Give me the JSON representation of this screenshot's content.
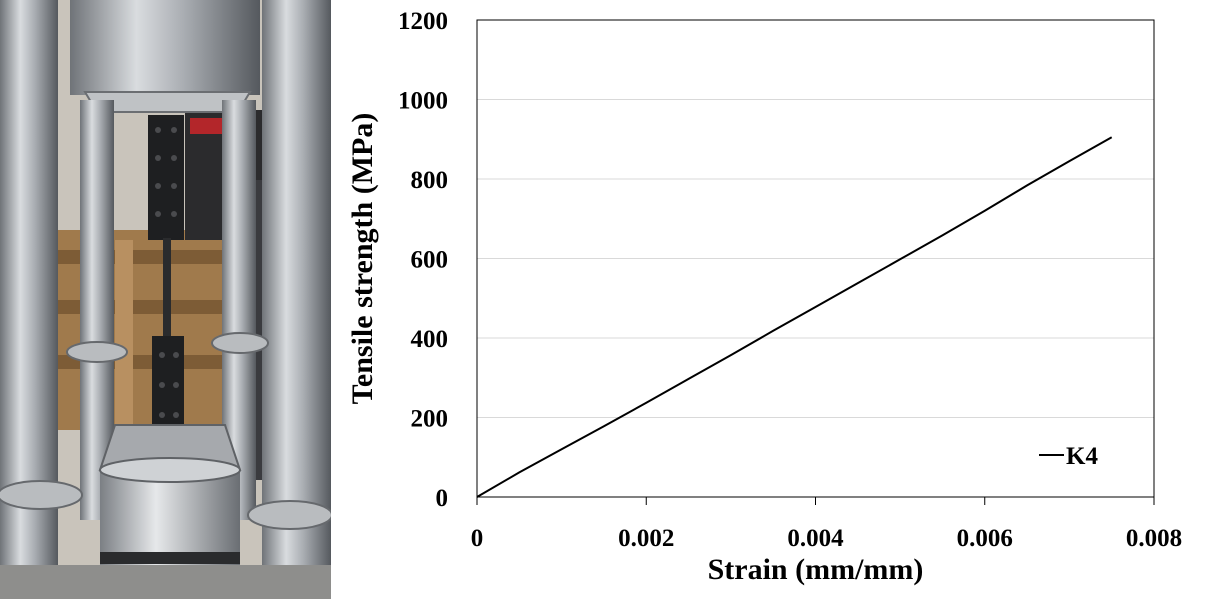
{
  "chart_data": {
    "type": "line",
    "xlabel": "Strain (mm/mm)",
    "ylabel": "Tensile strength (MPa)",
    "xlim": [
      0,
      0.008
    ],
    "ylim": [
      0,
      1200
    ],
    "x_ticks": [
      0,
      0.002,
      0.004,
      0.006,
      0.008
    ],
    "x_tick_labels": [
      "0",
      "0.002",
      "0.004",
      "0.006",
      "0.008"
    ],
    "y_ticks": [
      0,
      200,
      400,
      600,
      800,
      1000,
      1200
    ],
    "y_tick_labels": [
      "0",
      "200",
      "400",
      "600",
      "800",
      "1000",
      "1200"
    ],
    "grid": "horizontal",
    "legend_position": "bottom-right",
    "series": [
      {
        "name": "K4",
        "color": "#000000",
        "x": [
          0,
          0.0005,
          0.001,
          0.0015,
          0.002,
          0.0025,
          0.003,
          0.0035,
          0.004,
          0.0045,
          0.005,
          0.0055,
          0.006,
          0.0065,
          0.007,
          0.0075
        ],
        "y": [
          0,
          62,
          120,
          178,
          237,
          297,
          357,
          418,
          478,
          538,
          598,
          658,
          720,
          784,
          845,
          905
        ]
      }
    ]
  }
}
